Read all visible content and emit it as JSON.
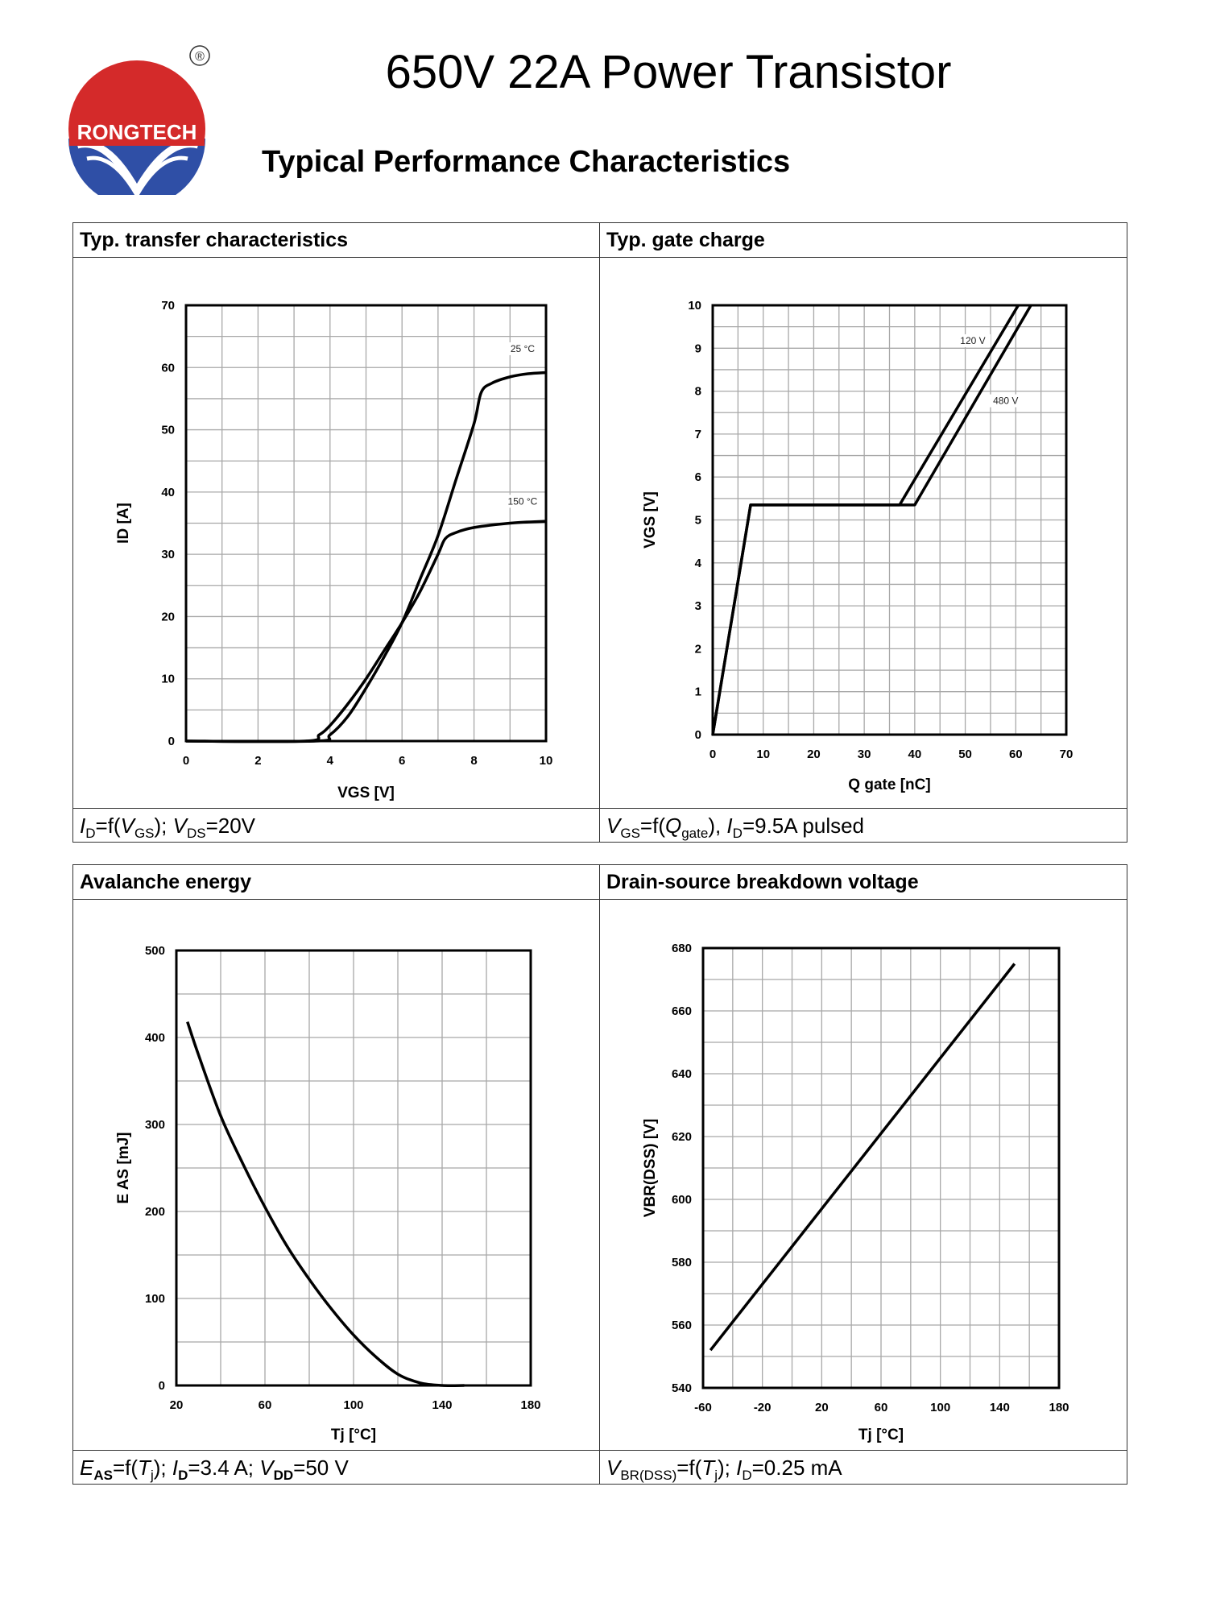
{
  "logo": {
    "brand": "RONGTECH",
    "registered": "®"
  },
  "header": {
    "title": "650V 22A Power Transistor",
    "section": "Typical Performance Characteristics"
  },
  "colors": {
    "logo_red": "#d42a2a",
    "logo_blue": "#2f4fa6",
    "curve": "#000000",
    "grid": "#a8a8a8"
  },
  "chart_data": [
    {
      "type": "line",
      "title": "Typ. transfer characteristics",
      "xlabel": "VGS [V]",
      "ylabel": "ID [A]",
      "xlim": [
        0,
        10
      ],
      "ylim": [
        0,
        70
      ],
      "xticks": [
        0,
        2,
        4,
        6,
        8,
        10
      ],
      "yticks": [
        0,
        10,
        20,
        30,
        40,
        50,
        60,
        70
      ],
      "grid": "on",
      "series": [
        {
          "name": "25 °C",
          "x": [
            0,
            3.6,
            4,
            4.5,
            5,
            5.5,
            6,
            6.5,
            7,
            7.5,
            8,
            8.2,
            8.5,
            9,
            9.5,
            10
          ],
          "y": [
            0,
            0,
            1,
            4,
            8.5,
            13.5,
            19,
            26,
            33,
            42,
            51,
            56,
            57.5,
            58.5,
            59,
            59.2
          ]
        },
        {
          "name": "150 °C",
          "x": [
            0,
            3.3,
            3.7,
            4,
            4.5,
            5,
            5.5,
            6,
            6.5,
            7,
            7.2,
            7.5,
            8,
            9,
            10
          ],
          "y": [
            0,
            0,
            1,
            2.5,
            6,
            10,
            14.5,
            19,
            24,
            30,
            32.5,
            33.5,
            34.3,
            35,
            35.3
          ]
        }
      ],
      "caption": "ID=f(VGS); VDS=20V"
    },
    {
      "type": "line",
      "title": "Typ. gate charge",
      "xlabel": "Q gate [nC]",
      "ylabel": "VGS [V]",
      "xlim": [
        0,
        70
      ],
      "ylim": [
        0,
        10
      ],
      "xticks": [
        0,
        10,
        20,
        30,
        40,
        50,
        60,
        70
      ],
      "yticks": [
        0,
        1,
        2,
        3,
        4,
        5,
        6,
        7,
        8,
        9,
        10
      ],
      "grid": "on",
      "series": [
        {
          "name": "120 V",
          "x": [
            0,
            7.5,
            37,
            60.5
          ],
          "y": [
            0,
            5.35,
            5.35,
            10
          ]
        },
        {
          "name": "480 V",
          "x": [
            0,
            7.5,
            40,
            63
          ],
          "y": [
            0,
            5.35,
            5.35,
            10
          ]
        }
      ],
      "caption": "VGS=f(Qgate), ID=9.5A pulsed"
    },
    {
      "type": "line",
      "title": "Avalanche energy",
      "xlabel": "Tj [°C]",
      "ylabel": "E AS [mJ]",
      "xlim": [
        20,
        180
      ],
      "ylim": [
        0,
        500
      ],
      "xticks": [
        20,
        60,
        100,
        140,
        180
      ],
      "yticks": [
        0,
        100,
        200,
        300,
        400,
        500
      ],
      "grid": "on",
      "series": [
        {
          "name": "EAS",
          "x": [
            25,
            30,
            40,
            50,
            60,
            70,
            80,
            90,
            100,
            110,
            120,
            130,
            140,
            150
          ],
          "y": [
            418,
            380,
            310,
            255,
            205,
            160,
            122,
            88,
            58,
            33,
            13,
            3,
            0,
            0
          ]
        }
      ],
      "caption": "EAS=f(Tj); ID=3.4 A; VDD=50 V"
    },
    {
      "type": "line",
      "title": "Drain-source breakdown voltage",
      "xlabel": "Tj [°C]",
      "ylabel": "VBR(DSS) [V]",
      "xlim": [
        -60,
        180
      ],
      "ylim": [
        540,
        680
      ],
      "xticks": [
        -60,
        -20,
        20,
        60,
        100,
        140,
        180
      ],
      "yticks": [
        540,
        560,
        580,
        600,
        620,
        640,
        660,
        680
      ],
      "grid": "on",
      "series": [
        {
          "name": "VBR(DSS)",
          "x": [
            -55,
            150
          ],
          "y": [
            552,
            675
          ]
        }
      ],
      "caption": "VBR(DSS)=f(Tj); ID=0.25 mA"
    }
  ]
}
